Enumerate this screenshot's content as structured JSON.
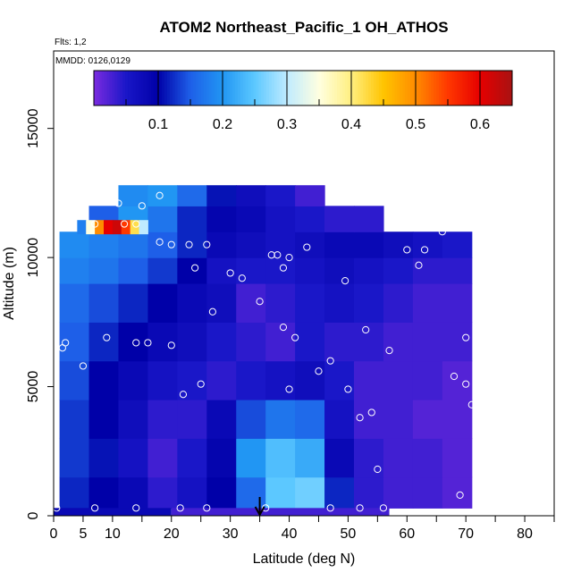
{
  "chart_data": {
    "type": "heatmap",
    "title": "ATOM2 Northeast_Pacific_1 OH_ATHOS",
    "flights_note": "Flts: 1,2",
    "dates_note": "MMDD: 0126,0129",
    "xlabel": "Latitude (deg N)",
    "ylabel": "Altitude (m)",
    "xlim": [
      0,
      85
    ],
    "ylim": [
      0,
      18000
    ],
    "x_ticks": [
      0,
      5,
      10,
      20,
      30,
      40,
      50,
      60,
      70,
      80
    ],
    "x_minor_ticks": [
      15,
      25,
      35,
      45,
      55,
      65,
      75,
      85
    ],
    "y_ticks": [
      0,
      5000,
      10000,
      15000
    ],
    "colorbar": {
      "ticks": [
        0.1,
        0.2,
        0.3,
        0.4,
        0.5,
        0.6
      ],
      "range": [
        0.0,
        0.65
      ],
      "colors": [
        "#7B2BE0",
        "#1A17C8",
        "#0000A8",
        "#1E5FE8",
        "#2196F3",
        "#5CC8FF",
        "#BFEBFF",
        "#FFFFE0",
        "#FFEF80",
        "#FFC400",
        "#FF8C00",
        "#FF3800",
        "#E60000",
        "#A81212"
      ]
    },
    "arrow_latitude": 35,
    "surface_cells": [
      {
        "lat": [
          0,
          20
        ],
        "alt": [
          0,
          300
        ],
        "value": 0.08
      },
      {
        "lat": [
          20,
          57
        ],
        "alt": [
          0,
          300
        ],
        "value": 0.03
      }
    ],
    "hot_band": {
      "lat": [
        4,
        16
      ],
      "alt": [
        10900,
        11450
      ],
      "values": [
        0.18,
        0.35,
        0.5,
        0.6,
        0.62,
        0.55,
        0.42,
        0.3
      ]
    },
    "grid": {
      "lat_edges": [
        1,
        6,
        11,
        16,
        21,
        26,
        31,
        36,
        41,
        46,
        51,
        56,
        61,
        66,
        71
      ],
      "alt_edges": [
        300,
        1500,
        3000,
        4500,
        6000,
        7500,
        9000,
        10000,
        11000,
        12000,
        12800
      ],
      "values": [
        [
          0.12,
          0.1,
          0.08,
          0.04,
          0.06,
          0.1,
          0.16,
          0.25,
          0.26,
          0.12,
          0.04,
          0.03,
          0.03,
          0.02
        ],
        [
          0.13,
          0.11,
          0.06,
          0.03,
          0.05,
          0.09,
          0.2,
          0.24,
          0.22,
          0.08,
          0.04,
          0.03,
          0.03,
          0.02
        ],
        [
          0.13,
          0.1,
          0.07,
          0.04,
          0.04,
          0.08,
          0.14,
          0.17,
          0.16,
          0.06,
          0.03,
          0.03,
          0.02,
          0.02
        ],
        [
          0.14,
          0.1,
          0.08,
          0.06,
          0.05,
          0.04,
          0.05,
          0.06,
          0.07,
          0.05,
          0.03,
          0.03,
          0.03,
          0.02
        ],
        [
          0.15,
          0.12,
          0.1,
          0.08,
          0.07,
          0.05,
          0.04,
          0.03,
          0.05,
          0.04,
          0.04,
          0.03,
          0.03,
          0.03
        ],
        [
          0.16,
          0.14,
          0.12,
          0.1,
          0.08,
          0.07,
          0.03,
          0.04,
          0.05,
          0.06,
          0.05,
          0.04,
          0.03,
          0.03
        ],
        [
          0.18,
          0.17,
          0.15,
          0.13,
          0.1,
          0.06,
          0.05,
          0.05,
          0.06,
          0.07,
          0.06,
          0.05,
          0.04,
          0.04
        ],
        [
          0.19,
          0.18,
          0.17,
          0.15,
          0.12,
          0.08,
          0.07,
          0.06,
          0.07,
          0.08,
          0.08,
          0.07,
          0.06,
          0.05
        ],
        [
          null,
          0.15,
          0.2,
          0.17,
          0.12,
          0.09,
          0.08,
          0.06,
          0.05,
          0.04,
          0.04,
          null,
          null,
          null
        ],
        [
          null,
          null,
          0.19,
          0.2,
          0.16,
          0.11,
          0.07,
          0.05,
          0.03,
          null,
          null,
          null,
          null,
          null
        ]
      ]
    },
    "observations": [
      [
        0.5,
        300
      ],
      [
        1.5,
        6500
      ],
      [
        2,
        6700
      ],
      [
        5,
        5800
      ],
      [
        7,
        11300
      ],
      [
        7,
        300
      ],
      [
        9,
        6900
      ],
      [
        11,
        12100
      ],
      [
        12,
        11300
      ],
      [
        14,
        300
      ],
      [
        14,
        6700
      ],
      [
        14,
        11300
      ],
      [
        15,
        12000
      ],
      [
        16,
        6700
      ],
      [
        18,
        10600
      ],
      [
        18,
        12400
      ],
      [
        20,
        10500
      ],
      [
        20,
        6600
      ],
      [
        21.5,
        300
      ],
      [
        22,
        4700
      ],
      [
        23,
        10500
      ],
      [
        24,
        9600
      ],
      [
        25,
        5100
      ],
      [
        26,
        10500
      ],
      [
        26,
        300
      ],
      [
        27,
        7900
      ],
      [
        30,
        9400
      ],
      [
        32,
        9200
      ],
      [
        35,
        8300
      ],
      [
        36,
        300
      ],
      [
        37,
        10100
      ],
      [
        38,
        10100
      ],
      [
        39,
        7300
      ],
      [
        39,
        9600
      ],
      [
        40,
        10000
      ],
      [
        40,
        4900
      ],
      [
        41,
        6900
      ],
      [
        43,
        10400
      ],
      [
        45,
        5600
      ],
      [
        47,
        300
      ],
      [
        47,
        6000
      ],
      [
        49.5,
        9100
      ],
      [
        50,
        4900
      ],
      [
        52,
        300
      ],
      [
        52,
        3800
      ],
      [
        53,
        7200
      ],
      [
        54,
        4000
      ],
      [
        55,
        1800
      ],
      [
        56,
        300
      ],
      [
        57,
        6400
      ],
      [
        60,
        10300
      ],
      [
        62,
        9700
      ],
      [
        63,
        10300
      ],
      [
        66,
        11000
      ],
      [
        68,
        5400
      ],
      [
        69,
        800
      ],
      [
        70,
        6900
      ],
      [
        70,
        5100
      ],
      [
        71,
        4300
      ]
    ]
  }
}
